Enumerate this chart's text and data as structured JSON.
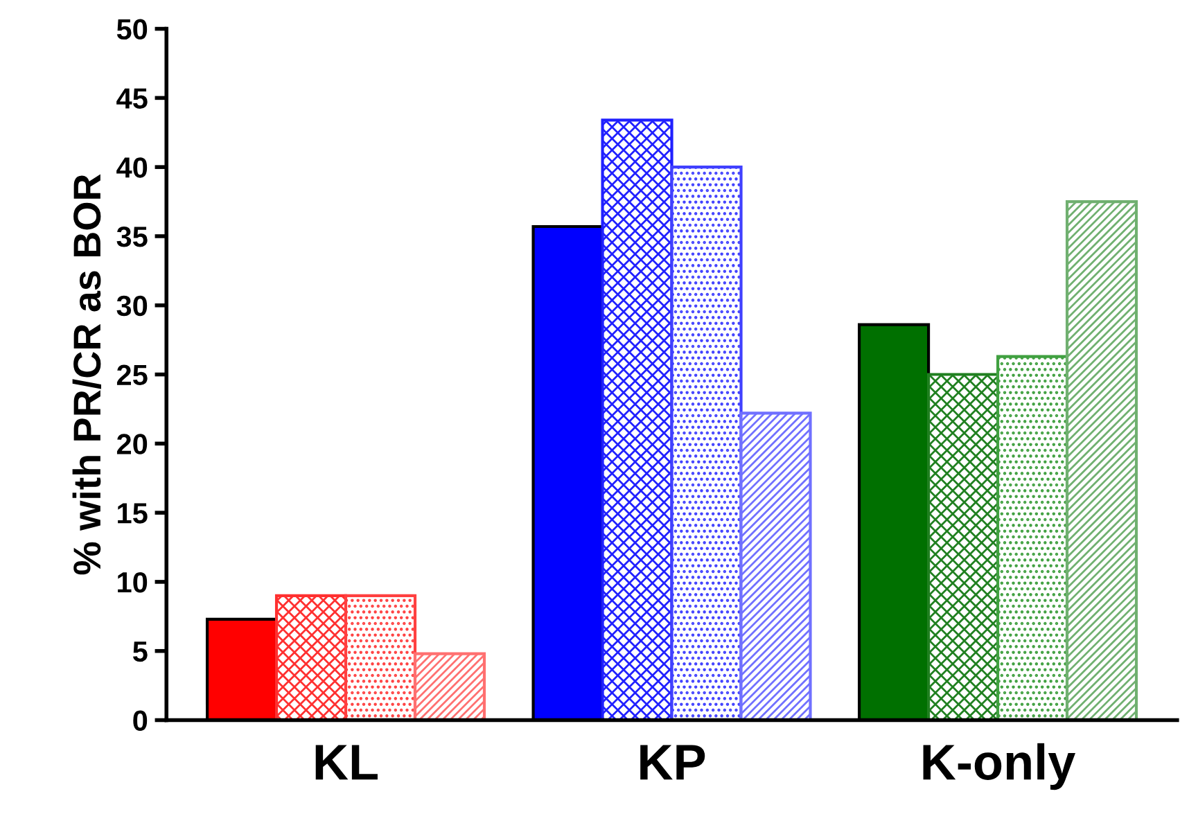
{
  "chart_data": {
    "type": "bar",
    "ylabel": "% with PR/CR as BOR",
    "categories": [
      "KL",
      "KP",
      "K-only"
    ],
    "series": [
      {
        "colors": [
          "#ff0000",
          "#0000ff",
          "#007000"
        ],
        "values": [
          7.3,
          35.7,
          28.6
        ]
      },
      {
        "colors": [
          "#ff3030",
          "#2020ff",
          "#208020"
        ],
        "values": [
          9.0,
          43.4,
          25.0
        ]
      },
      {
        "colors": [
          "#ff4040",
          "#4040ff",
          "#40a040"
        ],
        "values": [
          9.0,
          40.0,
          26.3
        ]
      },
      {
        "colors": [
          "#ff7070",
          "#7070ff",
          "#70b070"
        ],
        "values": [
          4.8,
          22.2,
          37.5
        ]
      }
    ],
    "ylim": [
      0,
      50
    ],
    "yticks": [
      0,
      5,
      10,
      15,
      20,
      25,
      30,
      35,
      40,
      45,
      50
    ],
    "grid": false,
    "legend": false
  }
}
